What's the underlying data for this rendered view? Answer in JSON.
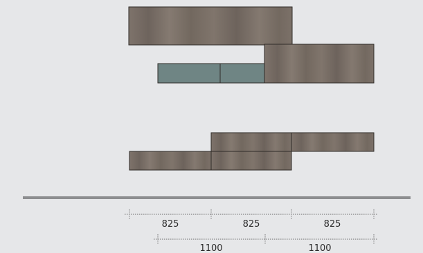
{
  "colors": {
    "background": "#e6e7e9",
    "wood": "#7b7068",
    "wood_dark": "#6c625b",
    "wood_light": "#8a7f76",
    "glass": "#6f8584",
    "outline": "#2f2b28",
    "floor": "#8d8e90",
    "dim_line": "#6a6a6a",
    "dim_text": "#2b2b2b"
  },
  "dimensions": {
    "row1": {
      "labels": [
        "825",
        "825",
        "825"
      ]
    },
    "row2": {
      "labels": [
        "1100",
        "1100"
      ]
    }
  }
}
